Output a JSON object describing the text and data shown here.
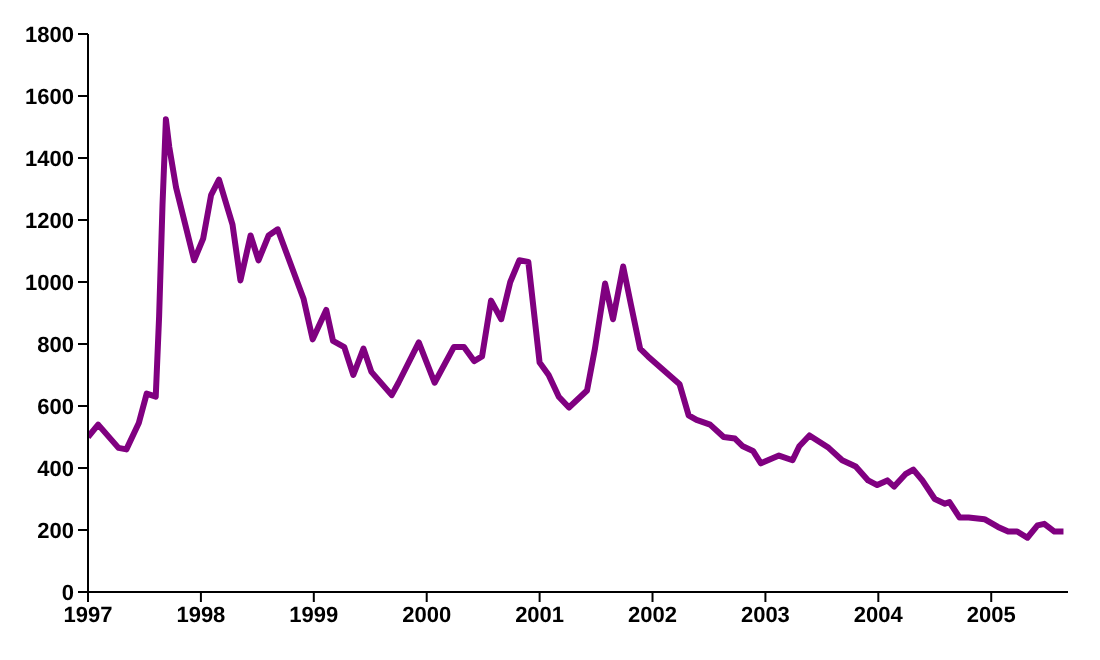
{
  "chart_data": {
    "type": "line",
    "x": [
      1997.0,
      1997.09,
      1997.27,
      1997.34,
      1997.45,
      1997.52,
      1997.6,
      1997.63,
      1997.66,
      1997.69,
      1997.72,
      1997.78,
      1997.94,
      1998.02,
      1998.09,
      1998.16,
      1998.28,
      1998.35,
      1998.44,
      1998.51,
      1998.6,
      1998.68,
      1998.91,
      1998.99,
      1999.11,
      1999.17,
      1999.27,
      1999.35,
      1999.44,
      1999.51,
      1999.69,
      1999.75,
      1999.93,
      2000.07,
      2000.24,
      2000.33,
      2000.42,
      2000.49,
      2000.57,
      2000.66,
      2000.74,
      2000.82,
      2000.9,
      2001.0,
      2001.08,
      2001.17,
      2001.26,
      2001.42,
      2001.49,
      2001.58,
      2001.65,
      2001.74,
      2001.81,
      2001.89,
      2001.96,
      2002.24,
      2002.32,
      2002.39,
      2002.51,
      2002.63,
      2002.73,
      2002.8,
      2002.89,
      2002.96,
      2003.12,
      2003.24,
      2003.3,
      2003.39,
      2003.56,
      2003.68,
      2003.8,
      2003.91,
      2003.99,
      2004.08,
      2004.14,
      2004.24,
      2004.31,
      2004.39,
      2004.5,
      2004.59,
      2004.63,
      2004.72,
      2004.8,
      2004.94,
      2005.06,
      2005.15,
      2005.23,
      2005.32,
      2005.41,
      2005.47,
      2005.56,
      2005.64
    ],
    "series": [
      {
        "color": "#800080",
        "values": [
          500,
          540,
          465,
          460,
          545,
          640,
          630,
          890,
          1250,
          1525,
          1435,
          1305,
          1070,
          1140,
          1280,
          1330,
          1185,
          1005,
          1150,
          1070,
          1150,
          1170,
          945,
          815,
          910,
          810,
          790,
          700,
          785,
          710,
          635,
          675,
          805,
          675,
          790,
          790,
          745,
          760,
          940,
          880,
          1000,
          1070,
          1065,
          740,
          700,
          630,
          595,
          650,
          785,
          995,
          880,
          1050,
          925,
          785,
          760,
          670,
          570,
          555,
          540,
          500,
          495,
          470,
          455,
          415,
          440,
          425,
          470,
          505,
          465,
          425,
          405,
          360,
          345,
          360,
          340,
          380,
          395,
          360,
          300,
          285,
          290,
          240,
          240,
          235,
          210,
          195,
          195,
          175,
          215,
          220,
          195,
          195
        ]
      }
    ],
    "xlim": [
      1997,
      2005.68
    ],
    "xticks": [
      1997,
      1998,
      1999,
      2000,
      2001,
      2002,
      2003,
      2004,
      2005
    ],
    "ylim": [
      0,
      1800
    ],
    "yticks": [
      0,
      200,
      400,
      600,
      800,
      1000,
      1200,
      1400,
      1600,
      1800
    ],
    "grid": false,
    "legend": false,
    "marker": "none",
    "line_style": "solid"
  }
}
